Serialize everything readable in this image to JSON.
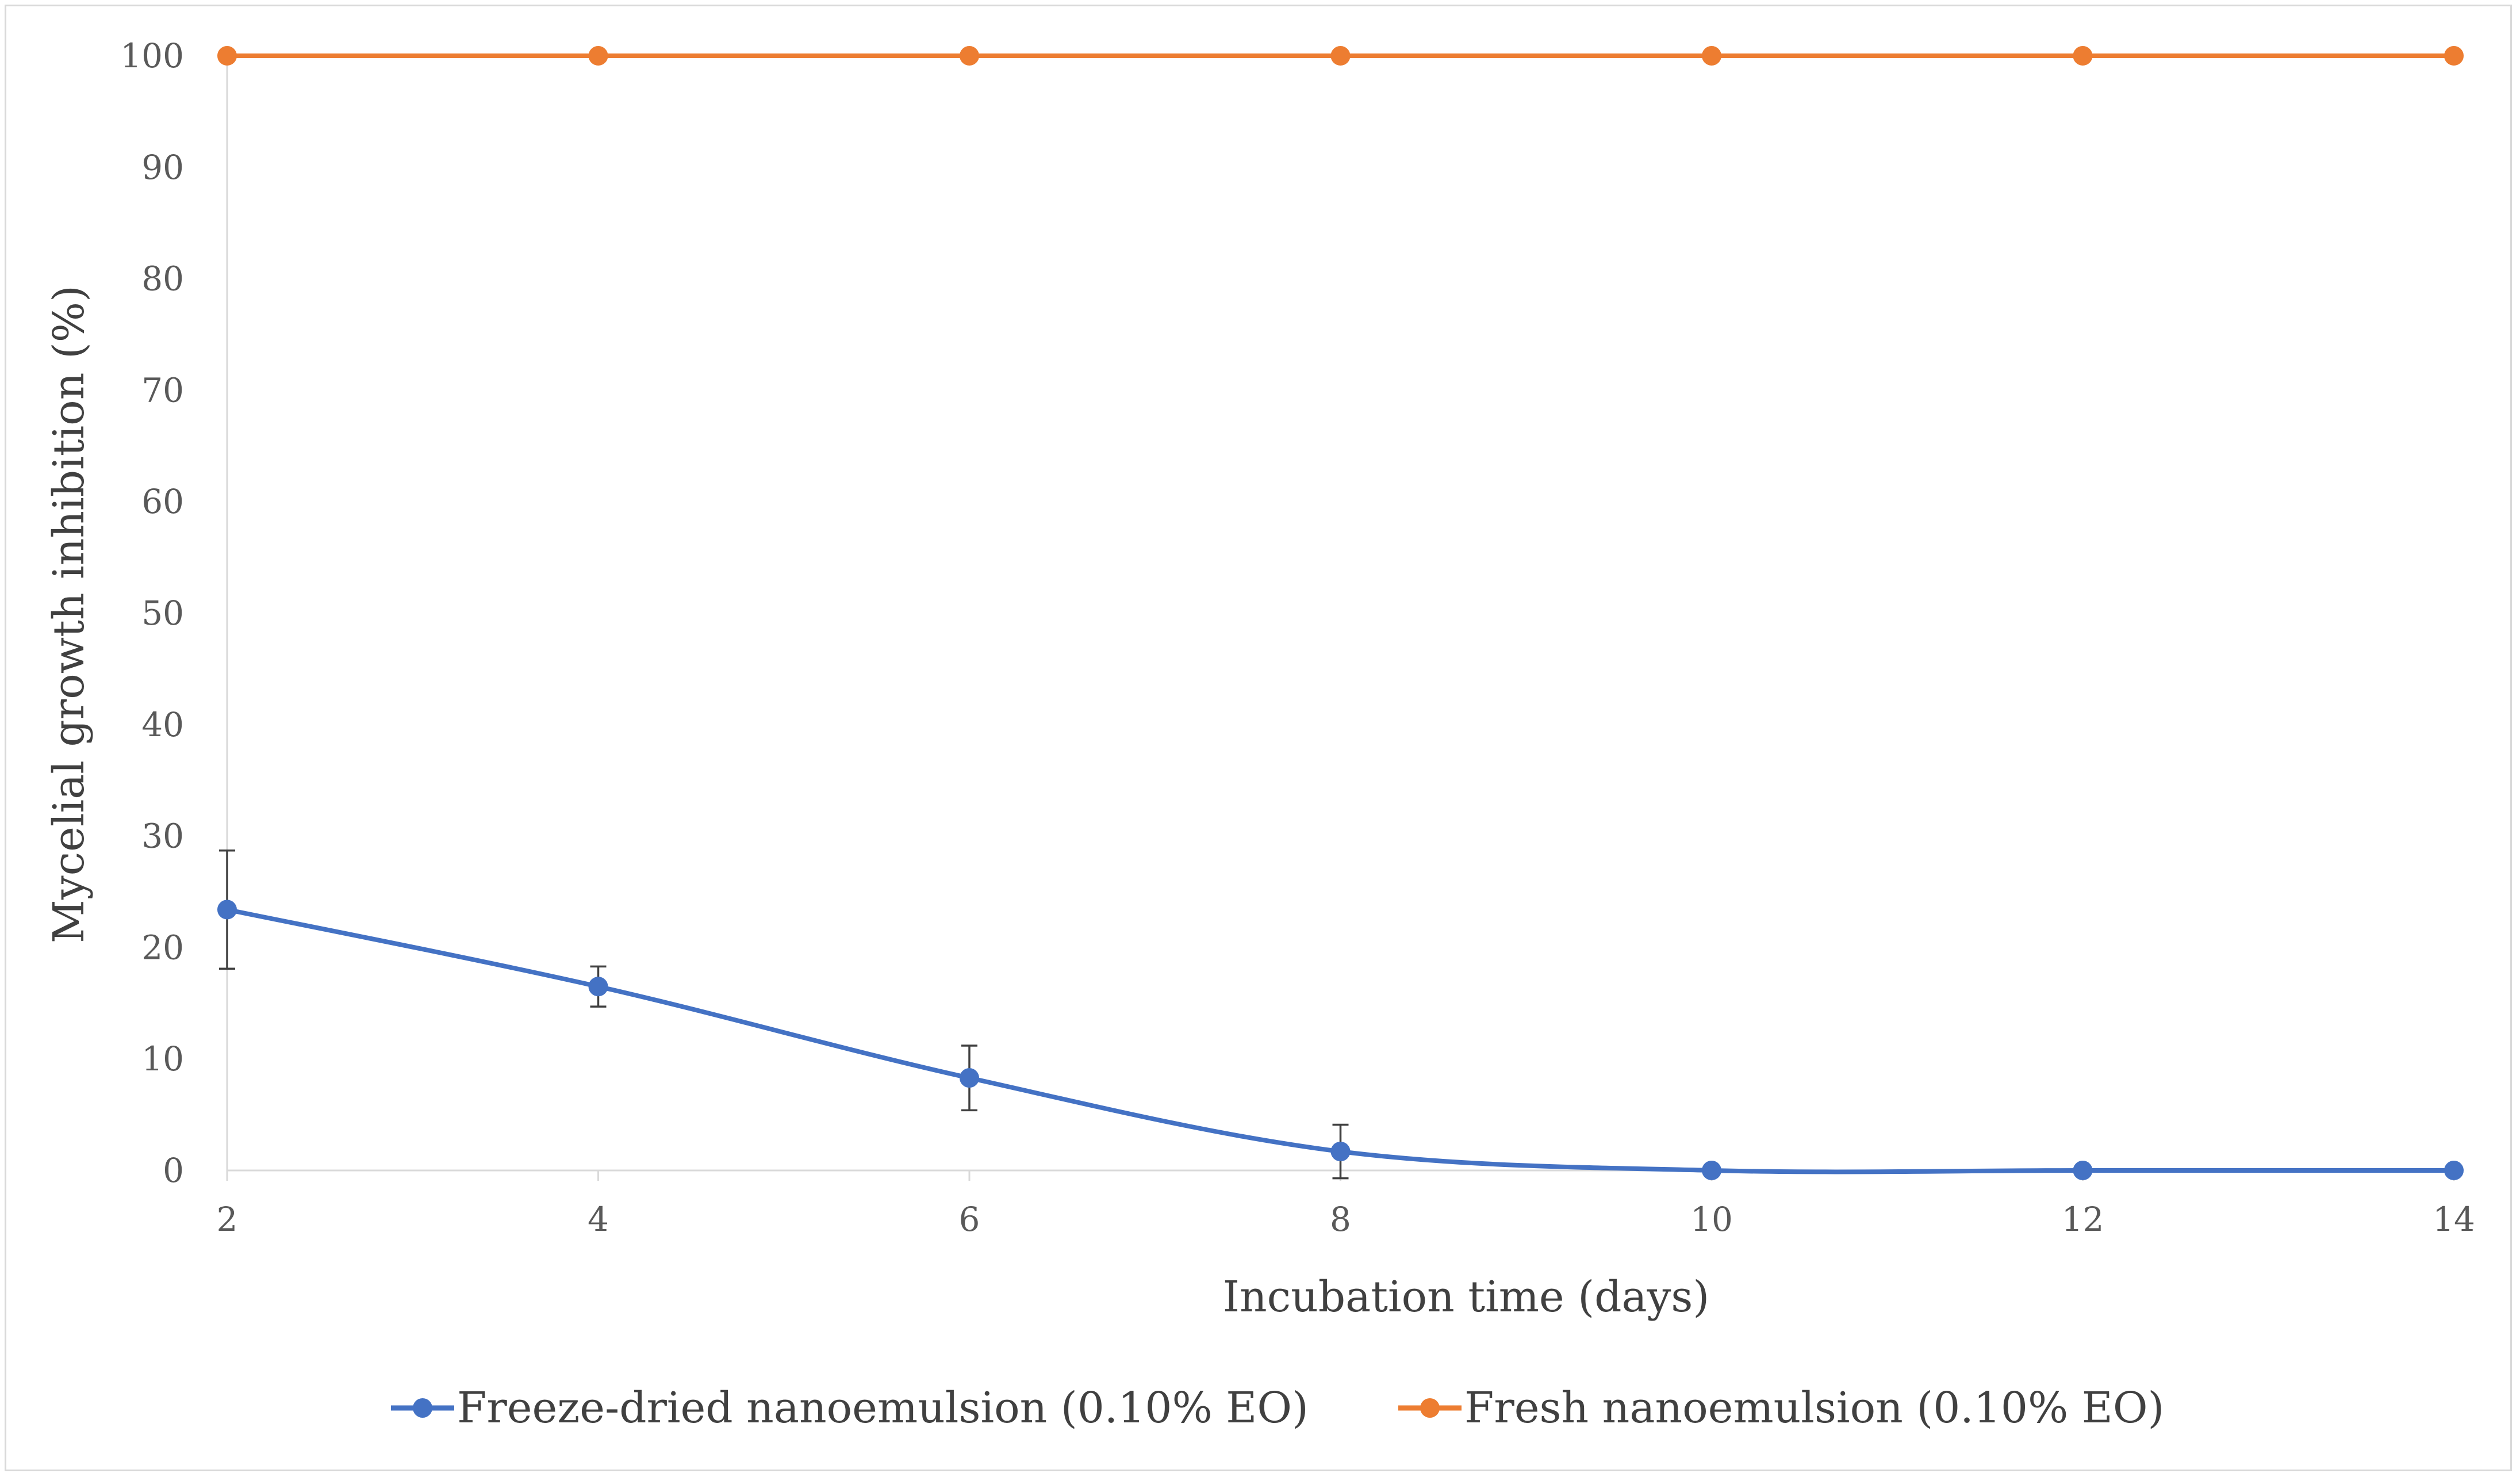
{
  "chart_data": {
    "type": "line",
    "title": "",
    "xlabel": "Incubation time (days)",
    "ylabel": "Mycelial growth inhibition (%)",
    "x": [
      2,
      4,
      6,
      8,
      10,
      12,
      14
    ],
    "xlim": [
      2,
      14
    ],
    "ylim": [
      0,
      100
    ],
    "y_ticks": [
      0,
      10,
      20,
      30,
      40,
      50,
      60,
      70,
      80,
      90,
      100
    ],
    "x_ticks": [
      2,
      4,
      6,
      8,
      10,
      12,
      14
    ],
    "grid": false,
    "legend_position": "bottom",
    "series": [
      {
        "name": "Freeze-dried nanoemulsion (0.10% EO)",
        "color": "#4472C4",
        "values": [
          23.4,
          16.5,
          8.3,
          1.7,
          0,
          0,
          0
        ],
        "errors": [
          5.3,
          1.8,
          2.9,
          2.4,
          0,
          0,
          0
        ],
        "smooth": true
      },
      {
        "name": "Fresh nanoemulsion (0.10% EO)",
        "color": "#ED7D31",
        "values": [
          100,
          100,
          100,
          100,
          100,
          100,
          100
        ],
        "errors": [
          0,
          0,
          0,
          0,
          0,
          0,
          0
        ],
        "smooth": true
      }
    ]
  }
}
